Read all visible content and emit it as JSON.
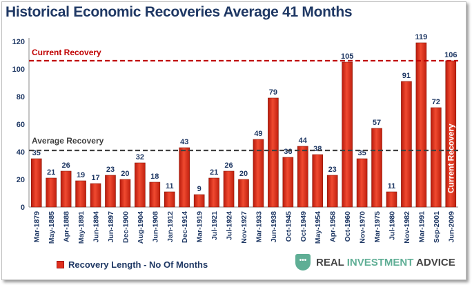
{
  "chart_data": {
    "type": "bar",
    "title": "Historical Economic Recoveries Average 41 Months",
    "categories": [
      "Mar-1879",
      "May-1885",
      "Apr-1888",
      "May-1891",
      "Jun-1894",
      "Jun-1897",
      "Dec-1900",
      "Aug-1904",
      "Jun-1908",
      "Jan-1912",
      "Dec-1914",
      "Mar-1919",
      "Jul-1921",
      "Jul-1924",
      "Nov-1927",
      "Mar-1933",
      "Jun-1938",
      "Oct-1945",
      "Oct-1949",
      "May-1954",
      "Apr-1958",
      "Oct-1960",
      "Nov-1970",
      "Mar-1975",
      "Jul-1980",
      "Nov-1982",
      "Mar-1991",
      "Sep-2001",
      "Jun-2009"
    ],
    "series": [
      {
        "name": "Recovery Length - No Of Months",
        "values": [
          35,
          21,
          26,
          19,
          17,
          23,
          20,
          32,
          18,
          11,
          43,
          9,
          21,
          26,
          20,
          49,
          79,
          36,
          44,
          38,
          23,
          105,
          35,
          57,
          11,
          91,
          119,
          72,
          106
        ]
      }
    ],
    "ylim": [
      0,
      120
    ],
    "yticks": [
      0,
      20,
      40,
      60,
      80,
      100,
      120
    ],
    "grid": false,
    "legend": "bottom-left",
    "bar_color": "#e0301e",
    "reference_lines": [
      {
        "label": "Current Recovery",
        "value": 106,
        "color": "#c00000"
      },
      {
        "label": "Average Recovery",
        "value": 41,
        "color": "#404040"
      }
    ],
    "annotations": [
      {
        "text": "Current Recovery",
        "target": "Jun-2009"
      }
    ]
  },
  "legend_label": "Recovery Length - No Of Months",
  "brand": {
    "part1": "REAL ",
    "part2": "INVESTMENT",
    "part3": " ADVICE"
  }
}
